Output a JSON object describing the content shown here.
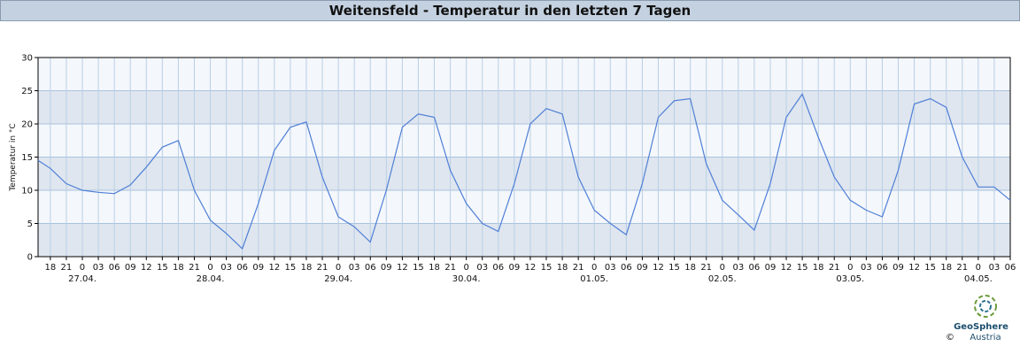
{
  "header": {
    "title": "Weitensfeld - Temperatur in den letzten 7 Tagen"
  },
  "chart_data": {
    "type": "line",
    "ylabel": "Temperatur in °C",
    "x": [
      -8.3,
      -6,
      -3,
      0,
      3,
      6,
      9,
      12,
      15,
      18,
      21,
      24,
      27,
      30,
      33,
      36,
      39,
      42,
      45,
      48,
      51,
      54,
      57,
      60,
      63,
      66,
      69,
      72,
      75,
      78,
      81,
      84,
      87,
      90,
      93,
      96,
      99,
      102,
      105,
      108,
      111,
      114,
      117,
      120,
      123,
      126,
      129,
      132,
      135,
      138,
      141,
      144,
      147,
      150,
      153,
      156,
      159,
      162,
      165,
      168,
      171,
      174
    ],
    "series": [
      {
        "name": "Temperatur",
        "color": "#4f7fd6",
        "values": [
          14.5,
          13.3,
          11,
          10,
          9.7,
          9.5,
          10.8,
          13.5,
          16.5,
          17.5,
          10,
          5.5,
          3.5,
          1.2,
          8,
          16,
          19.5,
          20.3,
          12,
          6,
          4.5,
          2.2,
          10,
          19.5,
          21.5,
          21,
          13,
          8,
          5,
          3.8,
          11,
          20,
          22.3,
          21.5,
          12,
          7,
          5,
          3.3,
          11,
          21,
          23.5,
          23.8,
          14,
          8.5,
          6.3,
          4,
          11,
          21,
          24.5,
          18,
          12,
          8.5,
          7,
          6,
          13,
          23,
          23.8,
          22.5,
          15,
          10.5,
          10.5,
          8.5
        ]
      }
    ],
    "xlim": [
      -8.3,
      174
    ],
    "ylim": [
      0,
      30
    ],
    "yticks": [
      0,
      5,
      10,
      15,
      20,
      25,
      30
    ],
    "xticks": [
      {
        "value": -6,
        "label": "18"
      },
      {
        "value": -3,
        "label": "21"
      },
      {
        "value": 0,
        "label": "0"
      },
      {
        "value": 3,
        "label": "03"
      },
      {
        "value": 6,
        "label": "06"
      },
      {
        "value": 9,
        "label": "09"
      },
      {
        "value": 12,
        "label": "12"
      },
      {
        "value": 15,
        "label": "15"
      },
      {
        "value": 18,
        "label": "18"
      },
      {
        "value": 21,
        "label": "21"
      },
      {
        "value": 24,
        "label": "0"
      },
      {
        "value": 27,
        "label": "03"
      },
      {
        "value": 30,
        "label": "06"
      },
      {
        "value": 33,
        "label": "09"
      },
      {
        "value": 36,
        "label": "12"
      },
      {
        "value": 39,
        "label": "15"
      },
      {
        "value": 42,
        "label": "18"
      },
      {
        "value": 45,
        "label": "21"
      },
      {
        "value": 48,
        "label": "0"
      },
      {
        "value": 51,
        "label": "03"
      },
      {
        "value": 54,
        "label": "06"
      },
      {
        "value": 57,
        "label": "09"
      },
      {
        "value": 60,
        "label": "12"
      },
      {
        "value": 63,
        "label": "15"
      },
      {
        "value": 66,
        "label": "18"
      },
      {
        "value": 69,
        "label": "21"
      },
      {
        "value": 72,
        "label": "0"
      },
      {
        "value": 75,
        "label": "03"
      },
      {
        "value": 78,
        "label": "06"
      },
      {
        "value": 81,
        "label": "09"
      },
      {
        "value": 84,
        "label": "12"
      },
      {
        "value": 87,
        "label": "15"
      },
      {
        "value": 90,
        "label": "18"
      },
      {
        "value": 93,
        "label": "21"
      },
      {
        "value": 96,
        "label": "0"
      },
      {
        "value": 99,
        "label": "03"
      },
      {
        "value": 102,
        "label": "06"
      },
      {
        "value": 105,
        "label": "09"
      },
      {
        "value": 108,
        "label": "12"
      },
      {
        "value": 111,
        "label": "15"
      },
      {
        "value": 114,
        "label": "18"
      },
      {
        "value": 117,
        "label": "21"
      },
      {
        "value": 120,
        "label": "0"
      },
      {
        "value": 123,
        "label": "03"
      },
      {
        "value": 126,
        "label": "06"
      },
      {
        "value": 129,
        "label": "09"
      },
      {
        "value": 132,
        "label": "12"
      },
      {
        "value": 135,
        "label": "15"
      },
      {
        "value": 138,
        "label": "18"
      },
      {
        "value": 141,
        "label": "21"
      },
      {
        "value": 144,
        "label": "0"
      },
      {
        "value": 147,
        "label": "03"
      },
      {
        "value": 150,
        "label": "06"
      },
      {
        "value": 153,
        "label": "09"
      },
      {
        "value": 156,
        "label": "12"
      },
      {
        "value": 159,
        "label": "15"
      },
      {
        "value": 162,
        "label": "18"
      },
      {
        "value": 165,
        "label": "21"
      },
      {
        "value": 168,
        "label": "0"
      },
      {
        "value": 171,
        "label": "03"
      },
      {
        "value": 174,
        "label": "06"
      }
    ],
    "date_labels": [
      {
        "value": 0,
        "label": "27.04."
      },
      {
        "value": 24,
        "label": "28.04."
      },
      {
        "value": 48,
        "label": "29.04."
      },
      {
        "value": 72,
        "label": "30.04."
      },
      {
        "value": 96,
        "label": "01.05."
      },
      {
        "value": 120,
        "label": "02.05."
      },
      {
        "value": 144,
        "label": "03.05."
      },
      {
        "value": 168,
        "label": "04.05."
      }
    ],
    "grid": true,
    "bands": true
  },
  "logo": {
    "name": "GeoSphere",
    "subtitle": "Austria",
    "copyright": "©"
  }
}
